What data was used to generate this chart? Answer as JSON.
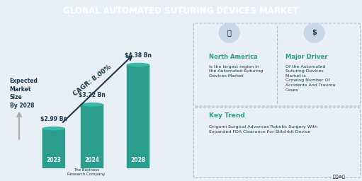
{
  "title": "GLOBAL AUTOMATED SUTURING DEVICES MARKET",
  "title_bg_color": "#1a4a5a",
  "title_text_color": "#ffffff",
  "bg_color": "#e8eff5",
  "bar_years": [
    "2023",
    "2024",
    "2028"
  ],
  "bar_values": [
    2.99,
    3.22,
    4.38
  ],
  "bar_labels": [
    "$2.99 Bn",
    "$3.22 Bn",
    "$4.38 Bn"
  ],
  "bar_color": "#2a9d8f",
  "cagr_text": "CAGR: 8.00%",
  "expected_text": "Expected\nMarket\nSize\nBy 2028",
  "left_panel_bg": "#d0dce8",
  "right_panel_bg": "#dde6ee",
  "north_america_title": "North America",
  "north_america_body": "is the largest region in\nthe Automated Suturing\nDevices Market",
  "major_driver_title": "Major Driver",
  "major_driver_body": "Of the Automated\nSuturing Devices\nMarket is\nGrowing Number Of\nAccidents And Trauma\nCases",
  "key_trend_title": "Key Trend",
  "key_trend_body": "Origami Surgical Advances Robotic Surgery With\nExpanded FDA Clearance For Stitchkit Device",
  "accent_color": "#2a9d8f",
  "text_dark": "#1a3a4a",
  "box_border_color": "#aabbcc",
  "footer_text": "The Business\nResearch Company"
}
